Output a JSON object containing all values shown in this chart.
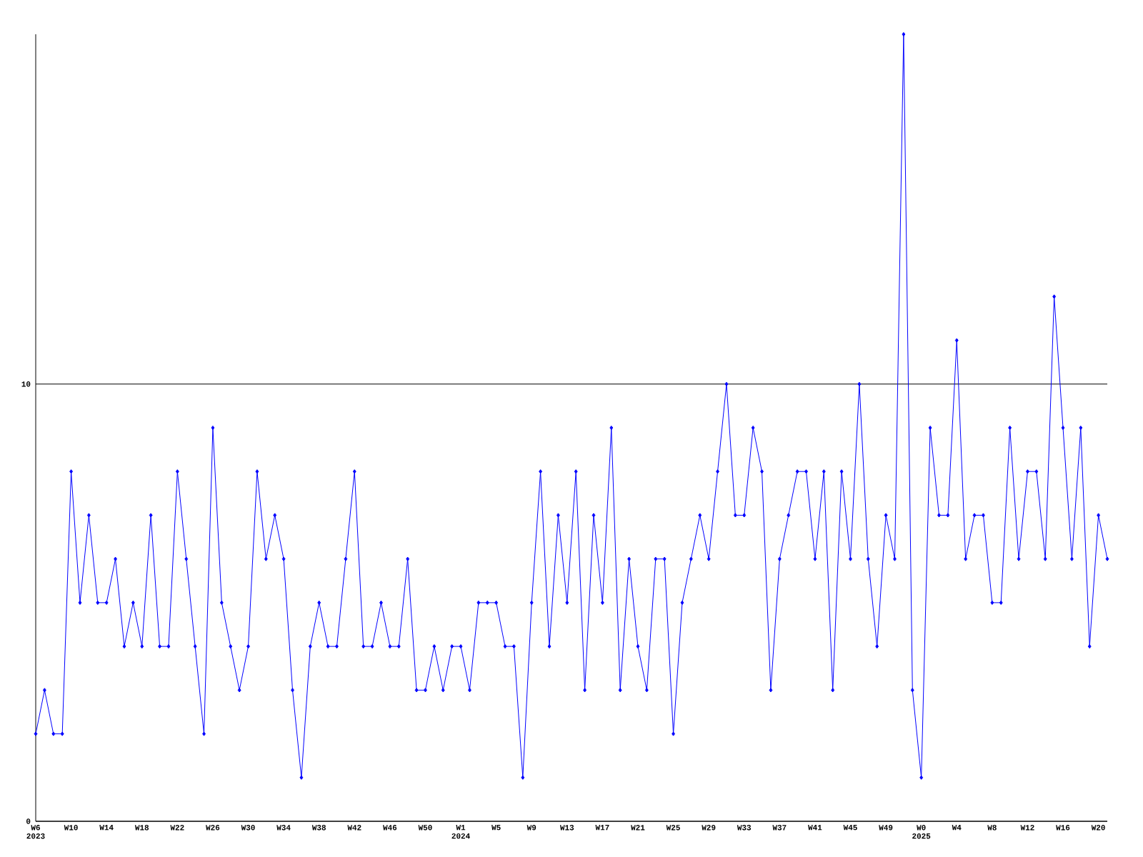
{
  "chart_data": {
    "type": "line",
    "categories": [
      "W6 2023",
      null,
      null,
      null,
      "W10",
      null,
      null,
      null,
      "W14",
      null,
      null,
      null,
      "W18",
      null,
      null,
      null,
      "W22",
      null,
      null,
      null,
      "W26",
      null,
      null,
      null,
      "W30",
      null,
      null,
      null,
      "W34",
      null,
      null,
      null,
      "W38",
      null,
      null,
      null,
      "W42",
      null,
      null,
      null,
      "W46",
      null,
      null,
      null,
      "W50",
      null,
      null,
      null,
      "W1 2024",
      null,
      null,
      null,
      "W5",
      null,
      null,
      null,
      "W9",
      null,
      null,
      null,
      "W13",
      null,
      null,
      null,
      "W17",
      null,
      null,
      null,
      "W21",
      null,
      null,
      null,
      "W25",
      null,
      null,
      null,
      "W29",
      null,
      null,
      null,
      "W33",
      null,
      null,
      null,
      "W37",
      null,
      null,
      null,
      "W41",
      null,
      null,
      null,
      "W45",
      null,
      null,
      null,
      "W49",
      null,
      null,
      null,
      "W0 2025",
      null,
      null,
      null,
      "W4",
      null,
      null,
      null,
      "W8",
      null,
      null,
      null,
      "W12",
      null,
      null,
      null,
      "W16",
      null,
      null,
      null,
      "W20",
      null
    ],
    "series": [
      {
        "color": "#0000ff",
        "values": [
          2,
          3,
          2,
          2,
          8,
          5,
          7,
          5,
          5,
          6,
          4,
          5,
          4,
          7,
          4,
          4,
          8,
          6,
          4,
          2,
          9,
          5,
          4,
          3,
          4,
          8,
          6,
          7,
          6,
          3,
          1,
          4,
          5,
          4,
          4,
          6,
          8,
          4,
          4,
          5,
          4,
          4,
          6,
          3,
          3,
          4,
          3,
          4,
          4,
          3,
          5,
          5,
          5,
          4,
          4,
          1,
          5,
          8,
          4,
          7,
          5,
          8,
          3,
          7,
          5,
          9,
          3,
          6,
          4,
          3,
          6,
          6,
          2,
          5,
          6,
          7,
          6,
          8,
          10,
          7,
          7,
          9,
          8,
          3,
          6,
          7,
          8,
          8,
          6,
          8,
          3,
          8,
          6,
          10,
          6,
          4,
          7,
          6,
          18,
          3,
          1,
          9,
          7,
          7,
          11,
          6,
          7,
          7,
          5,
          5,
          9,
          6,
          8,
          8,
          6,
          12,
          9,
          6,
          9,
          4,
          7,
          6
        ]
      }
    ],
    "ylim": [
      0,
      18
    ],
    "yticks": [
      0,
      10
    ],
    "grid": "y",
    "marker": "diamond",
    "line_style": "solid"
  }
}
